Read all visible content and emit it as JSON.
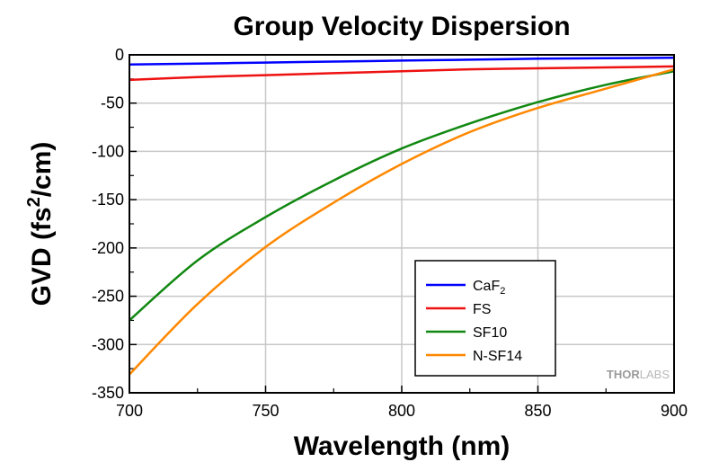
{
  "chart_data": {
    "type": "line",
    "title": "Group Velocity Dispersion",
    "xlabel": "Wavelength (nm)",
    "ylabel_parts": [
      "GVD (fs",
      "2",
      "/cm)"
    ],
    "xlim": [
      700,
      900
    ],
    "ylim": [
      -350,
      0
    ],
    "xticks": [
      700,
      750,
      800,
      850,
      900
    ],
    "yticks": [
      0,
      -50,
      -100,
      -150,
      -200,
      -250,
      -300,
      -350
    ],
    "grid": true,
    "legend_position": "lower-right",
    "series": [
      {
        "name": "CaF",
        "name_sub": "2",
        "color": "#0000ff",
        "x": [
          700,
          725,
          750,
          775,
          800,
          825,
          850,
          875,
          900
        ],
        "y": [
          -10,
          -9,
          -8,
          -7,
          -6,
          -5,
          -4,
          -3.5,
          -3
        ]
      },
      {
        "name": "FS",
        "name_sub": "",
        "color": "#ee1111",
        "x": [
          700,
          725,
          750,
          775,
          800,
          825,
          850,
          875,
          900
        ],
        "y": [
          -26,
          -23,
          -21,
          -19,
          -17,
          -15,
          -14,
          -13,
          -12
        ]
      },
      {
        "name": "SF10",
        "name_sub": "",
        "color": "#118811",
        "x": [
          700,
          725,
          750,
          775,
          800,
          825,
          850,
          875,
          900
        ],
        "y": [
          -275,
          -213,
          -168,
          -130,
          -97,
          -71,
          -49,
          -31,
          -17
        ]
      },
      {
        "name": "N-SF14",
        "name_sub": "",
        "color": "#ff8800",
        "x": [
          700,
          725,
          750,
          775,
          800,
          825,
          850,
          875,
          900
        ],
        "y": [
          -331,
          -258,
          -199,
          -153,
          -113,
          -80,
          -55,
          -35,
          -15
        ]
      }
    ]
  },
  "watermark": {
    "part1": "THOR",
    "part2": "LABS"
  }
}
